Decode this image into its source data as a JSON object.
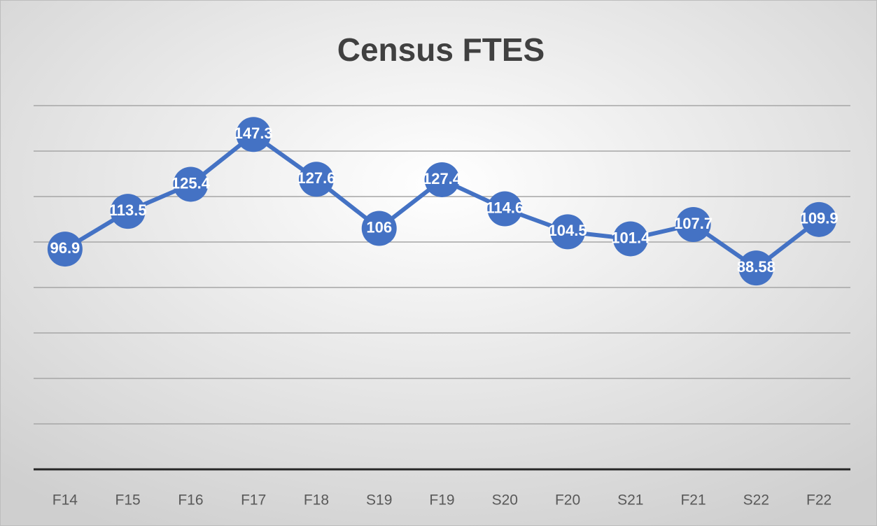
{
  "chart_data": {
    "type": "line",
    "title": "Census FTES",
    "categories": [
      "F14",
      "F15",
      "F16",
      "F17",
      "F18",
      "S19",
      "F19",
      "S20",
      "F20",
      "S21",
      "F21",
      "S22",
      "F22"
    ],
    "series": [
      {
        "name": null,
        "color": "#4472c4",
        "values": [
          96.9,
          113.5,
          125.4,
          147.3,
          127.6,
          106,
          127.4,
          114.6,
          104.5,
          101.4,
          107.7,
          88.58,
          109.9
        ]
      }
    ],
    "ylim": [
      0,
      160
    ],
    "yticks": [
      0,
      20,
      40,
      60,
      80,
      100,
      120,
      140,
      160
    ],
    "show_ytick_labels": false,
    "grid": true,
    "data_labels": true
  }
}
